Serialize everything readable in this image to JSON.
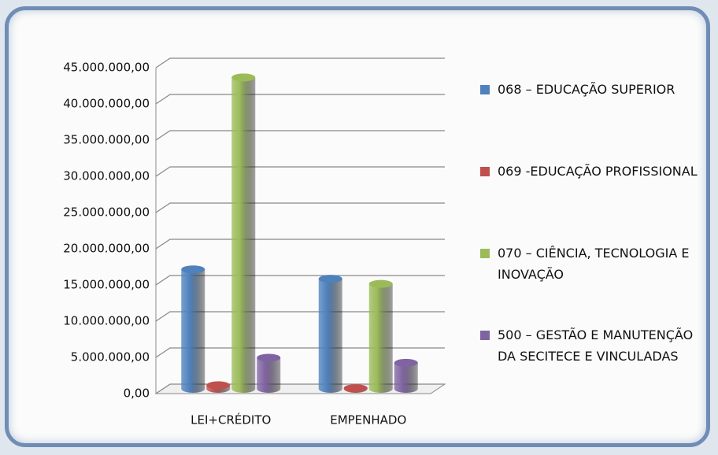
{
  "chart_data": {
    "type": "bar",
    "categories": [
      "LEI+CRÉDITO",
      "EMPENHADO"
    ],
    "series": [
      {
        "name": "068 – EDUCAÇÃO SUPERIOR",
        "color": "#4f81bd",
        "values": [
          16500000,
          15200000
        ]
      },
      {
        "name": "069 -EDUCAÇÃO PROFISSIONAL",
        "color": "#c0504d",
        "values": [
          500000,
          100000
        ]
      },
      {
        "name": "070 – CIÊNCIA, TECNOLOGIA E INOVAÇÃO",
        "color": "#9bbb59",
        "values": [
          43000000,
          14500000
        ]
      },
      {
        "name": "500 – GESTÃO E MANUTENÇÃO DA SECITECE E VINCULADAS",
        "color": "#8064a2",
        "values": [
          4300000,
          3600000
        ]
      }
    ],
    "ylim": [
      0,
      45000000
    ],
    "yticks": [
      {
        "value": 0,
        "label": "0,00"
      },
      {
        "value": 5000000,
        "label": "5.000.000,00"
      },
      {
        "value": 10000000,
        "label": "10.000.000,00"
      },
      {
        "value": 15000000,
        "label": "15.000.000,00"
      },
      {
        "value": 20000000,
        "label": "20.000.000,00"
      },
      {
        "value": 25000000,
        "label": "25.000.000,00"
      },
      {
        "value": 30000000,
        "label": "30.000.000,00"
      },
      {
        "value": 35000000,
        "label": "35.000.000,00"
      },
      {
        "value": 40000000,
        "label": "40.000.000,00"
      },
      {
        "value": 45000000,
        "label": "45.000.000,00"
      }
    ],
    "grid": true,
    "legend": "right"
  }
}
